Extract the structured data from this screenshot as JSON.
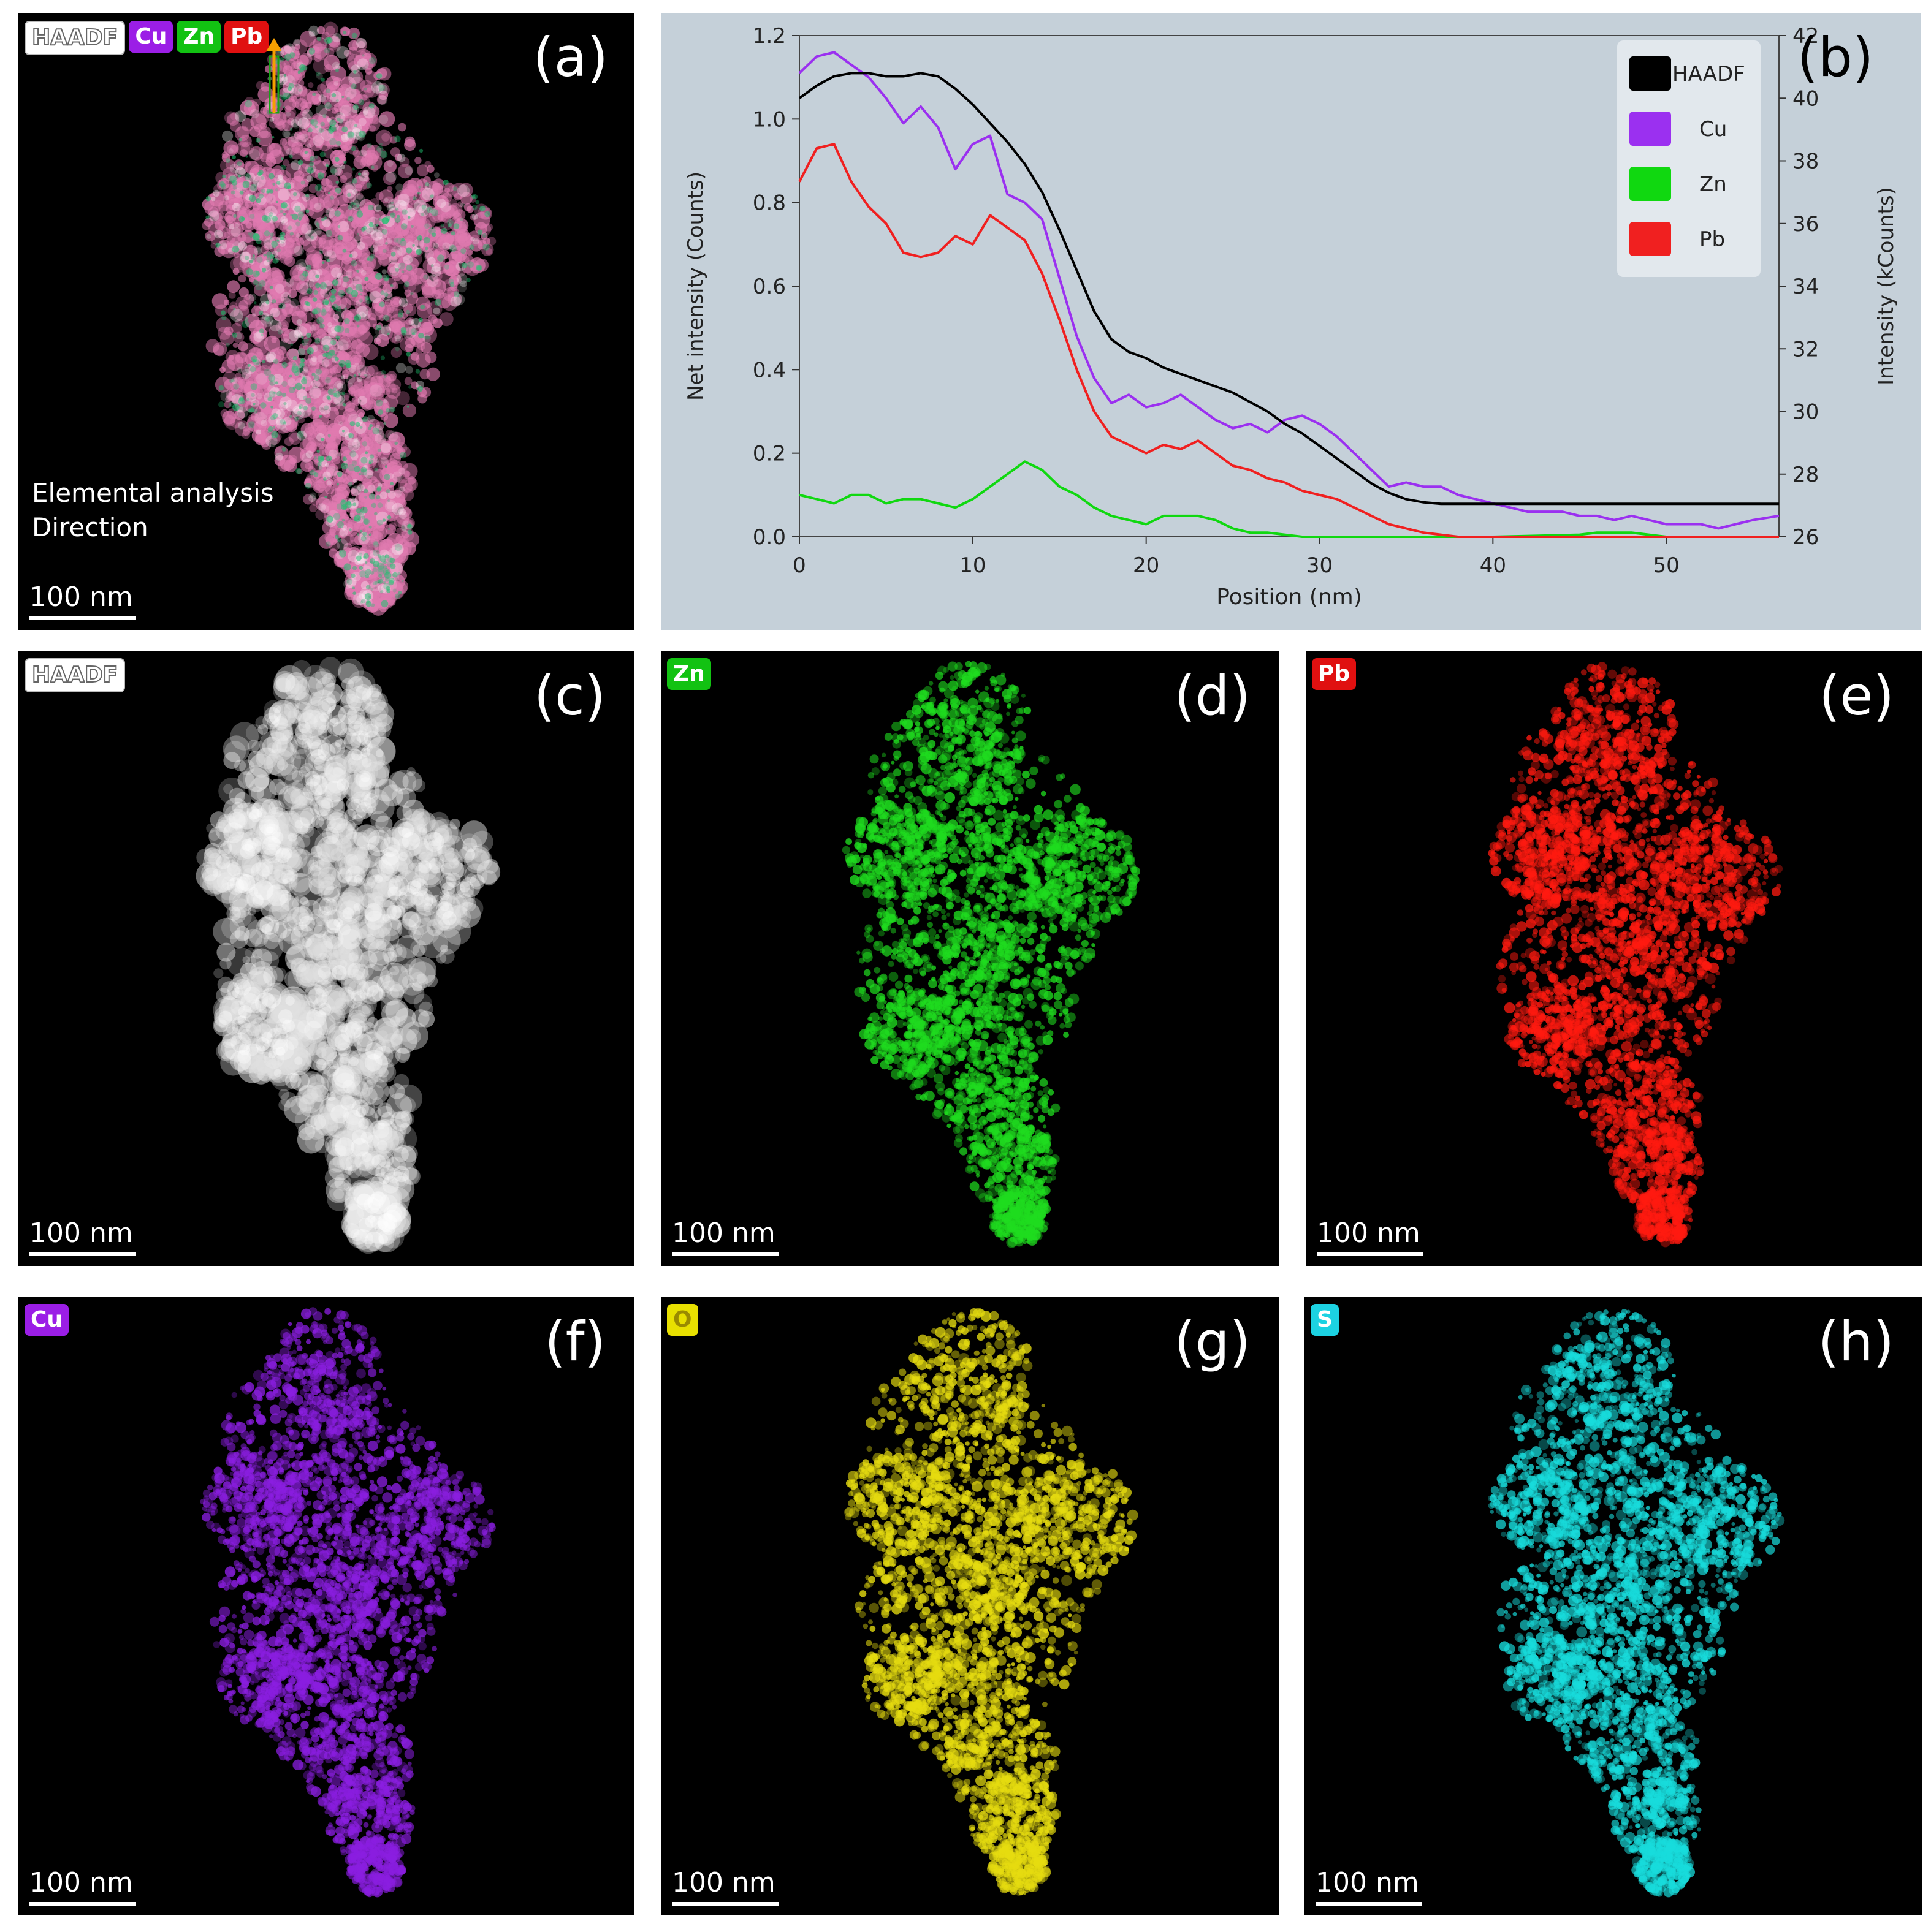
{
  "figure": {
    "panels": [
      {
        "id": "a",
        "label": "(a)",
        "badges": [
          "HAADF",
          "Cu",
          "Zn",
          "Pb"
        ],
        "annotation": [
          "Elemental analysis",
          "Direction"
        ],
        "scale": "100 nm"
      },
      {
        "id": "c",
        "label": "(c)",
        "badges": [
          "HAADF"
        ],
        "scale": "100 nm",
        "color": "#e0e0e0"
      },
      {
        "id": "d",
        "label": "(d)",
        "badges": [
          "Zn"
        ],
        "scale": "100 nm",
        "color": "#1fdc1f"
      },
      {
        "id": "e",
        "label": "(e)",
        "badges": [
          "Pb"
        ],
        "scale": "100 nm",
        "color": "#ff1a10"
      },
      {
        "id": "f",
        "label": "(f)",
        "badges": [
          "Cu"
        ],
        "scale": "100 nm",
        "color": "#8a1ee0"
      },
      {
        "id": "g",
        "label": "(g)",
        "badges": [
          "O"
        ],
        "scale": "100 nm",
        "color": "#e6dc10"
      },
      {
        "id": "h",
        "label": "(h)",
        "badges": [
          "S"
        ],
        "scale": "100 nm",
        "color": "#18dcdc"
      }
    ],
    "badge_colors": {
      "HAADF": "#ffffff",
      "Cu": "#9b1ee6",
      "Zn": "#12c212",
      "Pb": "#e01010",
      "O": "#e8e000",
      "S": "#1cd2e2"
    }
  },
  "chart_data": {
    "type": "line",
    "panel_label": "(b)",
    "xlabel": "Position (nm)",
    "ylabel": "Net intensity (Counts)",
    "y2label": "Intensity (kCounts)",
    "xlim": [
      0,
      56.5
    ],
    "ylim": [
      0,
      1.2
    ],
    "y2lim": [
      26,
      42
    ],
    "xticks": [
      0,
      10,
      20,
      30,
      40,
      50
    ],
    "yticks": [
      0.0,
      0.2,
      0.4,
      0.6,
      0.8,
      1.0,
      1.2
    ],
    "y2ticks": [
      26,
      28,
      30,
      32,
      34,
      36,
      38,
      40,
      42
    ],
    "legend_position": "top-right",
    "series": [
      {
        "name": "HAADF",
        "color": "#000000",
        "axis": "right",
        "x": [
          0,
          1,
          2,
          3,
          4,
          5,
          6,
          7,
          8,
          9,
          10,
          11,
          12,
          13,
          14,
          15,
          16,
          17,
          18,
          19,
          20,
          21,
          22,
          23,
          24,
          25,
          26,
          27,
          28,
          29,
          30,
          31,
          32,
          33,
          34,
          35,
          36,
          37,
          38,
          39,
          40,
          41,
          42,
          43,
          44,
          45,
          46,
          47,
          48,
          49,
          50,
          51,
          52,
          53,
          54,
          55,
          56.5
        ],
        "y": [
          40.0,
          40.4,
          40.7,
          40.8,
          40.8,
          40.7,
          40.7,
          40.8,
          40.7,
          40.3,
          39.8,
          39.2,
          38.6,
          37.9,
          37.0,
          35.8,
          34.5,
          33.2,
          32.3,
          31.9,
          31.7,
          31.4,
          31.2,
          31.0,
          30.8,
          30.6,
          30.3,
          30.0,
          29.6,
          29.3,
          28.9,
          28.5,
          28.1,
          27.7,
          27.4,
          27.2,
          27.1,
          27.05,
          27.05,
          27.05,
          27.05,
          27.05,
          27.05,
          27.05,
          27.05,
          27.05,
          27.05,
          27.05,
          27.05,
          27.05,
          27.05,
          27.05,
          27.05,
          27.05,
          27.05,
          27.05,
          27.05
        ]
      },
      {
        "name": "Cu",
        "color": "#9b30f0",
        "axis": "left",
        "x": [
          0,
          1,
          2,
          3,
          4,
          5,
          6,
          7,
          8,
          9,
          10,
          11,
          12,
          13,
          14,
          15,
          16,
          17,
          18,
          19,
          20,
          21,
          22,
          23,
          24,
          25,
          26,
          27,
          28,
          29,
          30,
          31,
          32,
          33,
          34,
          35,
          36,
          37,
          38,
          39,
          40,
          41,
          42,
          43,
          44,
          45,
          46,
          47,
          48,
          49,
          50,
          51,
          52,
          53,
          54,
          55,
          56.5
        ],
        "y": [
          1.11,
          1.15,
          1.16,
          1.13,
          1.1,
          1.05,
          0.99,
          1.03,
          0.98,
          0.88,
          0.94,
          0.96,
          0.82,
          0.8,
          0.76,
          0.62,
          0.48,
          0.38,
          0.32,
          0.34,
          0.31,
          0.32,
          0.34,
          0.31,
          0.28,
          0.26,
          0.27,
          0.25,
          0.28,
          0.29,
          0.27,
          0.24,
          0.2,
          0.16,
          0.12,
          0.13,
          0.12,
          0.12,
          0.1,
          0.09,
          0.08,
          0.07,
          0.06,
          0.06,
          0.06,
          0.05,
          0.05,
          0.04,
          0.05,
          0.04,
          0.03,
          0.03,
          0.03,
          0.02,
          0.03,
          0.04,
          0.05
        ]
      },
      {
        "name": "Zn",
        "color": "#10d810",
        "axis": "left",
        "x": [
          0,
          1,
          2,
          3,
          4,
          5,
          6,
          7,
          8,
          9,
          10,
          11,
          12,
          13,
          14,
          15,
          16,
          17,
          18,
          19,
          20,
          21,
          22,
          23,
          24,
          25,
          26,
          27,
          28,
          29,
          30,
          35,
          40,
          45,
          46,
          47,
          48,
          49,
          50,
          56.5
        ],
        "y": [
          0.1,
          0.09,
          0.08,
          0.1,
          0.1,
          0.08,
          0.09,
          0.09,
          0.08,
          0.07,
          0.09,
          0.12,
          0.15,
          0.18,
          0.16,
          0.12,
          0.1,
          0.07,
          0.05,
          0.04,
          0.03,
          0.05,
          0.05,
          0.05,
          0.04,
          0.02,
          0.01,
          0.01,
          0.005,
          0.0,
          0.0,
          0.0,
          0.0,
          0.005,
          0.01,
          0.01,
          0.01,
          0.005,
          0.0,
          0.0
        ]
      },
      {
        "name": "Pb",
        "color": "#f02020",
        "axis": "left",
        "x": [
          0,
          1,
          2,
          3,
          4,
          5,
          6,
          7,
          8,
          9,
          10,
          11,
          12,
          13,
          14,
          15,
          16,
          17,
          18,
          19,
          20,
          21,
          22,
          23,
          24,
          25,
          26,
          27,
          28,
          29,
          30,
          31,
          32,
          33,
          34,
          35,
          36,
          37,
          38,
          39,
          40,
          45,
          50,
          56.5
        ],
        "y": [
          0.85,
          0.93,
          0.94,
          0.85,
          0.79,
          0.75,
          0.68,
          0.67,
          0.68,
          0.72,
          0.7,
          0.77,
          0.74,
          0.71,
          0.63,
          0.52,
          0.4,
          0.3,
          0.24,
          0.22,
          0.2,
          0.22,
          0.21,
          0.23,
          0.2,
          0.17,
          0.16,
          0.14,
          0.13,
          0.11,
          0.1,
          0.09,
          0.07,
          0.05,
          0.03,
          0.02,
          0.01,
          0.005,
          0.0,
          0.0,
          0.0,
          0.0,
          0.0,
          0.0
        ]
      }
    ]
  }
}
